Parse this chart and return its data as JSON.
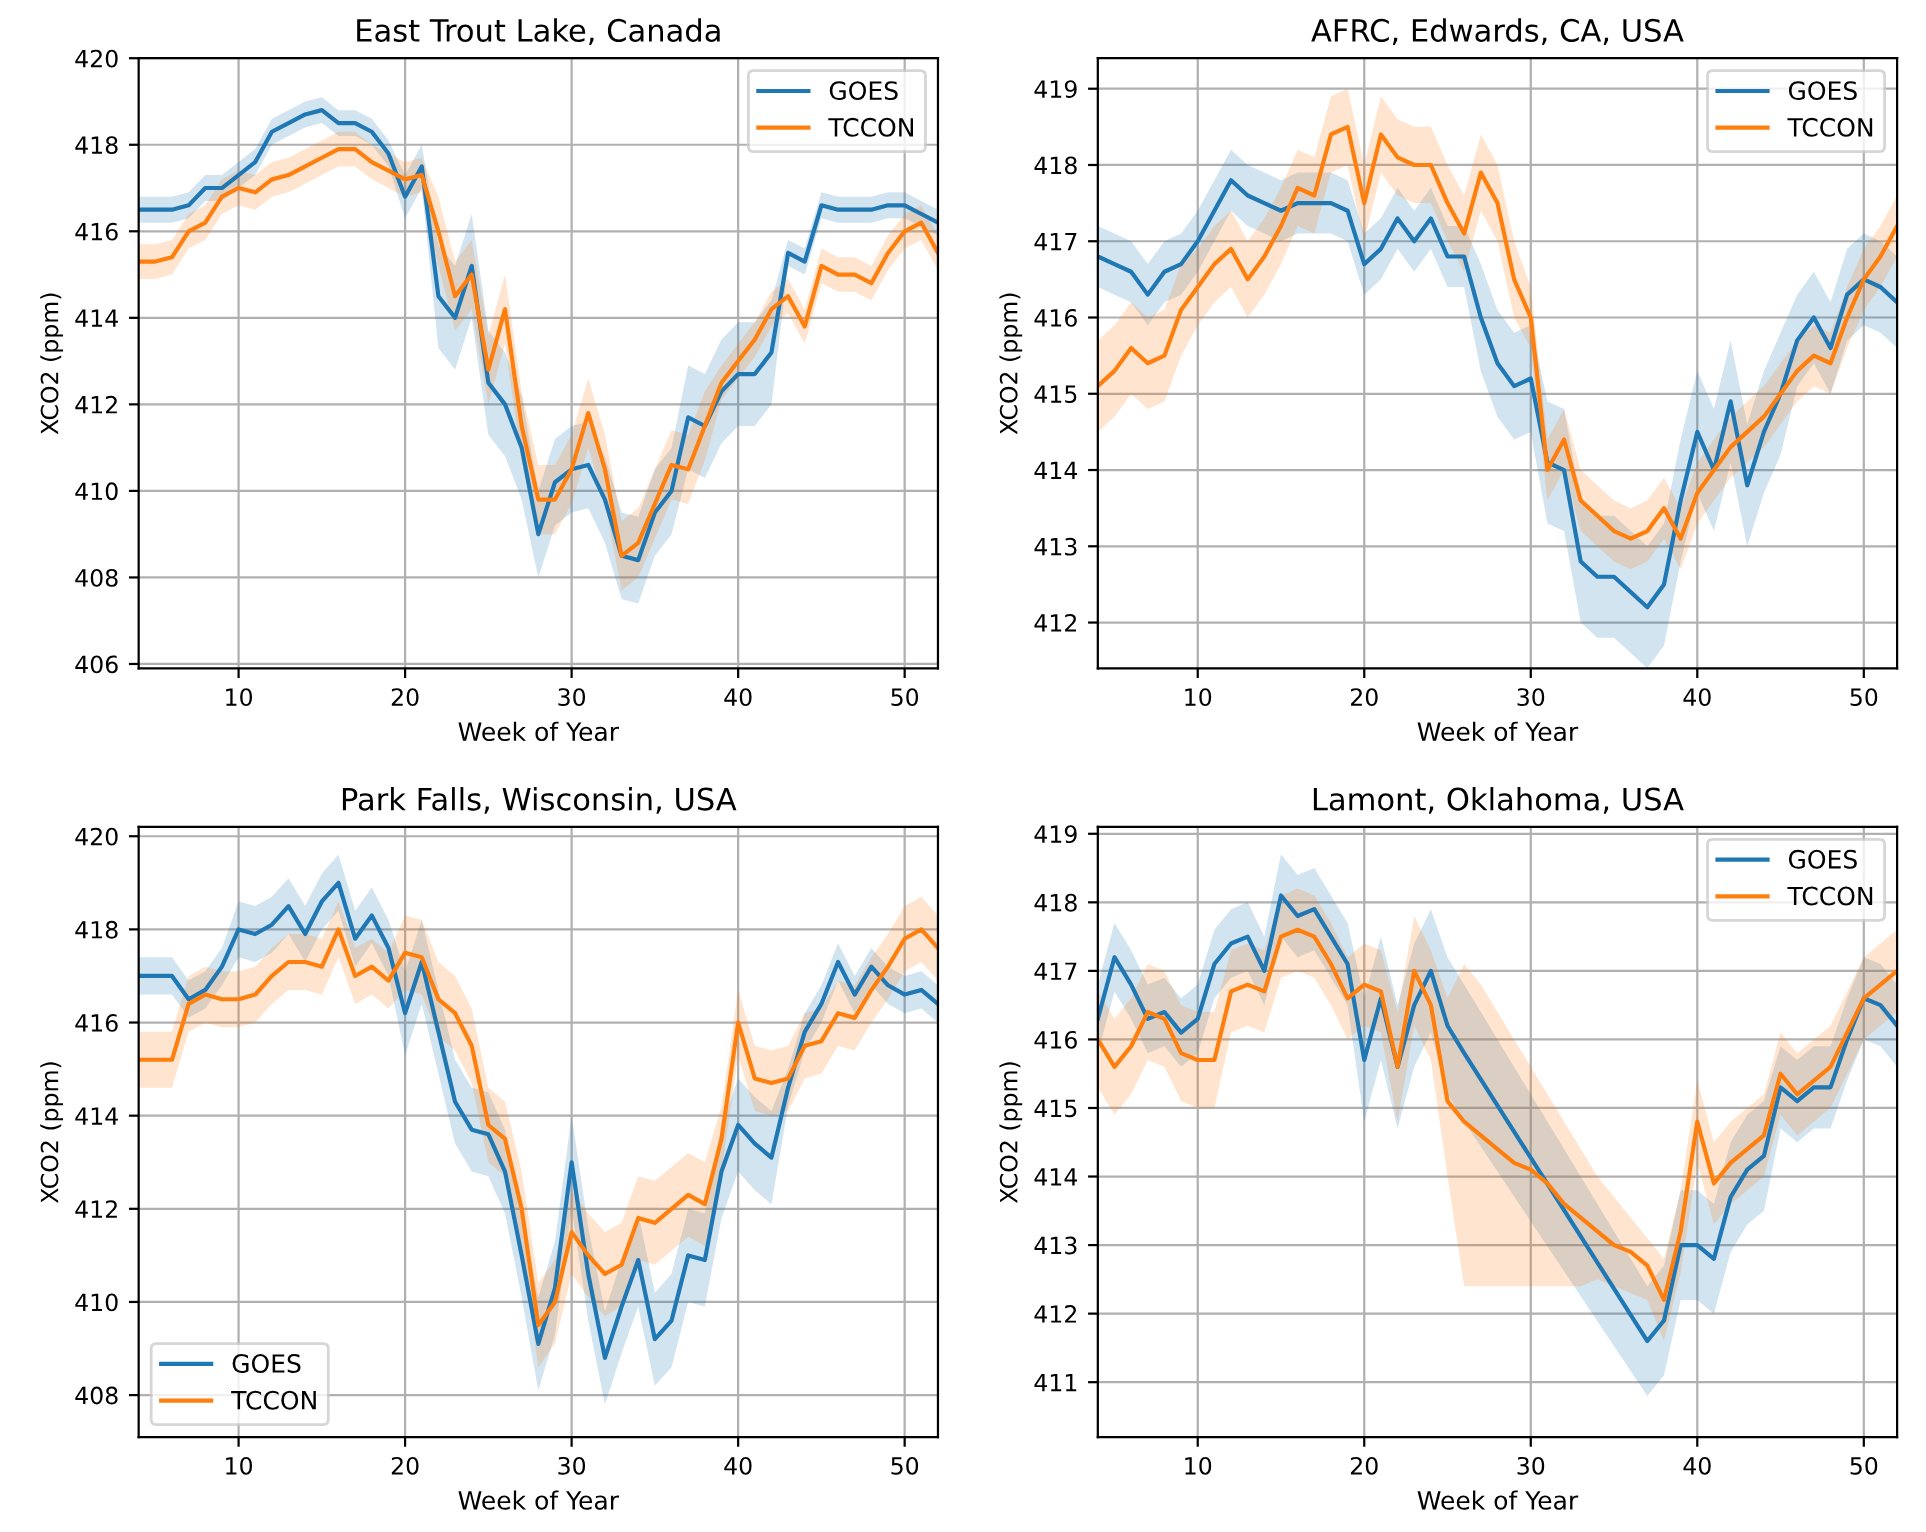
{
  "chart_data": [
    {
      "type": "line",
      "title": "East Trout Lake, Canada",
      "xlabel": "Week of Year",
      "ylabel": "XCO2 (ppm)",
      "xlim": [
        4,
        52
      ],
      "xticks": [
        10,
        20,
        30,
        40,
        50
      ],
      "ylim": [
        405.9,
        420
      ],
      "yticks": [
        406,
        408,
        410,
        412,
        414,
        416,
        418,
        420
      ],
      "grid": true,
      "legend": "top right",
      "line_style": "solid",
      "x": [
        4,
        5,
        6,
        7,
        8,
        9,
        10,
        11,
        12,
        13,
        14,
        15,
        16,
        17,
        18,
        19,
        20,
        21,
        22,
        23,
        24,
        25,
        26,
        27,
        28,
        29,
        30,
        31,
        32,
        33,
        34,
        35,
        36,
        37,
        38,
        39,
        40,
        41,
        42,
        43,
        44,
        45,
        46,
        47,
        48,
        49,
        50,
        51,
        52
      ],
      "series": [
        {
          "name": "GOES",
          "color": "#1f77b4",
          "values": [
            416.5,
            416.5,
            416.5,
            416.6,
            417.0,
            417.0,
            417.3,
            417.6,
            418.3,
            418.5,
            418.7,
            418.8,
            418.5,
            418.5,
            418.3,
            417.8,
            416.8,
            417.5,
            414.5,
            414.0,
            415.2,
            412.5,
            412.0,
            411.0,
            409.0,
            410.2,
            410.5,
            410.6,
            409.8,
            408.5,
            408.4,
            409.5,
            410.0,
            411.7,
            411.5,
            412.3,
            412.7,
            412.7,
            413.2,
            415.5,
            415.3,
            416.6,
            416.5,
            416.5,
            416.5,
            416.6,
            416.6,
            416.4,
            416.2
          ],
          "lower": [
            416.2,
            416.2,
            416.2,
            416.3,
            416.7,
            416.7,
            417.0,
            417.3,
            418.0,
            418.2,
            418.4,
            418.5,
            418.2,
            418.2,
            418.0,
            417.5,
            416.3,
            417.0,
            413.3,
            412.8,
            414.0,
            411.3,
            410.8,
            409.8,
            408.0,
            409.2,
            409.5,
            409.6,
            408.8,
            407.5,
            407.4,
            408.5,
            409.0,
            410.5,
            410.3,
            411.1,
            411.5,
            411.5,
            412.0,
            415.2,
            415.0,
            416.3,
            416.2,
            416.2,
            416.2,
            416.3,
            416.3,
            416.1,
            415.9
          ],
          "upper": [
            416.8,
            416.8,
            416.8,
            416.9,
            417.3,
            417.3,
            417.6,
            417.9,
            418.6,
            418.8,
            419.0,
            419.1,
            418.8,
            418.8,
            418.6,
            418.1,
            417.3,
            418.0,
            415.7,
            415.2,
            416.4,
            413.7,
            413.2,
            412.2,
            410.0,
            411.2,
            411.5,
            411.6,
            410.8,
            409.5,
            409.4,
            410.5,
            411.0,
            412.9,
            412.7,
            413.5,
            413.9,
            413.9,
            414.4,
            415.8,
            415.6,
            416.9,
            416.8,
            416.8,
            416.8,
            416.9,
            416.9,
            416.7,
            416.5
          ]
        },
        {
          "name": "TCCON",
          "color": "#ff7f0e",
          "values": [
            415.3,
            415.3,
            415.4,
            416.0,
            416.2,
            416.8,
            417.0,
            416.9,
            417.2,
            417.3,
            417.5,
            417.7,
            417.9,
            417.9,
            417.6,
            417.4,
            417.2,
            417.3,
            416.0,
            414.5,
            415.0,
            412.8,
            414.2,
            411.5,
            409.8,
            409.8,
            410.5,
            411.8,
            410.5,
            408.5,
            408.8,
            409.7,
            410.6,
            410.5,
            411.5,
            412.5,
            413.0,
            413.5,
            414.2,
            414.5,
            413.8,
            415.2,
            415.0,
            415.0,
            414.8,
            415.5,
            416.0,
            416.2,
            415.5
          ],
          "lower": [
            414.9,
            414.9,
            415.0,
            415.6,
            415.8,
            416.4,
            416.6,
            416.5,
            416.8,
            416.9,
            417.1,
            417.3,
            417.5,
            417.5,
            417.2,
            417.0,
            416.8,
            416.9,
            415.2,
            413.7,
            414.2,
            412.0,
            413.4,
            410.7,
            409.0,
            409.0,
            409.7,
            411.0,
            409.7,
            407.7,
            408.0,
            408.9,
            409.8,
            409.7,
            410.7,
            412.1,
            412.6,
            413.1,
            413.8,
            414.1,
            413.4,
            414.8,
            414.6,
            414.6,
            414.4,
            415.1,
            415.6,
            415.8,
            415.1
          ],
          "upper": [
            415.7,
            415.7,
            415.8,
            416.4,
            416.6,
            417.2,
            417.4,
            417.3,
            417.6,
            417.7,
            417.9,
            418.1,
            418.3,
            418.3,
            418.0,
            417.8,
            417.6,
            417.7,
            416.8,
            415.3,
            415.8,
            413.6,
            415.0,
            412.3,
            410.6,
            410.6,
            411.3,
            412.6,
            411.3,
            409.3,
            409.6,
            410.5,
            411.4,
            411.3,
            412.3,
            412.9,
            413.4,
            413.9,
            414.6,
            414.9,
            414.2,
            415.6,
            415.4,
            415.4,
            415.2,
            415.9,
            416.4,
            416.6,
            415.9
          ]
        }
      ]
    },
    {
      "type": "line",
      "title": "AFRC, Edwards, CA, USA",
      "xlabel": "Week of Year",
      "ylabel": "XCO2 (ppm)",
      "xlim": [
        4,
        52
      ],
      "xticks": [
        10,
        20,
        30,
        40,
        50
      ],
      "ylim": [
        411.4,
        419.4
      ],
      "yticks": [
        412,
        413,
        414,
        415,
        416,
        417,
        418,
        419
      ],
      "grid": true,
      "legend": "top right",
      "line_style": "solid",
      "x": [
        4,
        5,
        6,
        7,
        8,
        9,
        10,
        11,
        12,
        13,
        14,
        15,
        16,
        17,
        18,
        19,
        20,
        21,
        22,
        23,
        24,
        25,
        26,
        27,
        28,
        29,
        30,
        31,
        32,
        33,
        34,
        35,
        36,
        37,
        38,
        39,
        40,
        41,
        42,
        43,
        44,
        45,
        46,
        47,
        48,
        49,
        50,
        51,
        52
      ],
      "series": [
        {
          "name": "GOES",
          "color": "#1f77b4",
          "values": [
            416.8,
            416.7,
            416.6,
            416.3,
            416.6,
            416.7,
            417.0,
            417.4,
            417.8,
            417.6,
            417.5,
            417.4,
            417.5,
            417.5,
            417.5,
            417.4,
            416.7,
            416.9,
            417.3,
            417.0,
            417.3,
            416.8,
            416.8,
            416.0,
            415.4,
            415.1,
            415.2,
            414.1,
            414.0,
            412.8,
            412.6,
            412.6,
            412.4,
            412.2,
            412.5,
            413.6,
            414.5,
            414.0,
            414.9,
            413.8,
            414.5,
            415.0,
            415.7,
            416.0,
            415.6,
            416.3,
            416.5,
            416.4,
            416.2
          ],
          "lower": [
            416.4,
            416.3,
            416.2,
            415.9,
            416.2,
            416.3,
            416.6,
            417.0,
            417.4,
            417.2,
            417.1,
            417.0,
            417.1,
            417.1,
            417.1,
            417.0,
            416.3,
            416.5,
            416.9,
            416.6,
            416.9,
            416.4,
            416.4,
            415.3,
            414.7,
            414.4,
            414.5,
            413.3,
            413.2,
            412.0,
            411.8,
            411.8,
            411.6,
            411.4,
            411.7,
            412.8,
            413.7,
            413.2,
            414.1,
            413.0,
            413.7,
            414.2,
            415.1,
            415.4,
            415.0,
            415.7,
            415.9,
            415.8,
            415.6
          ],
          "upper": [
            417.2,
            417.1,
            417.0,
            416.7,
            417.0,
            417.1,
            417.4,
            417.8,
            418.2,
            418.0,
            417.9,
            417.8,
            417.9,
            417.9,
            417.9,
            417.8,
            417.1,
            417.3,
            417.7,
            417.4,
            417.7,
            417.2,
            417.2,
            416.7,
            416.1,
            415.8,
            415.9,
            414.9,
            414.8,
            413.6,
            413.4,
            413.4,
            413.2,
            413.0,
            413.3,
            414.4,
            415.3,
            414.8,
            415.7,
            414.6,
            415.3,
            415.8,
            416.3,
            416.6,
            416.2,
            416.9,
            417.1,
            417.0,
            416.8
          ]
        },
        {
          "name": "TCCON",
          "color": "#ff7f0e",
          "values": [
            415.1,
            415.3,
            415.6,
            415.4,
            415.5,
            416.1,
            416.4,
            416.7,
            416.9,
            416.5,
            416.8,
            417.2,
            417.7,
            417.6,
            418.4,
            418.5,
            417.5,
            418.4,
            418.1,
            418.0,
            418.0,
            417.5,
            417.1,
            417.9,
            417.5,
            416.5,
            416.0,
            414.0,
            414.4,
            413.6,
            413.4,
            413.2,
            413.1,
            413.2,
            413.5,
            413.1,
            413.7,
            414.0,
            414.3,
            414.5,
            414.7,
            415.0,
            415.3,
            415.5,
            415.4,
            416.0,
            416.5,
            416.8,
            417.2
          ],
          "lower": [
            414.5,
            414.7,
            415.0,
            414.8,
            414.9,
            415.5,
            415.9,
            416.2,
            416.4,
            416.0,
            416.3,
            416.7,
            417.2,
            417.1,
            417.9,
            418.0,
            417.0,
            417.9,
            417.6,
            417.5,
            417.5,
            417.0,
            416.6,
            417.4,
            417.0,
            416.0,
            415.6,
            413.6,
            414.0,
            413.2,
            413.0,
            412.8,
            412.7,
            412.8,
            413.1,
            412.7,
            413.3,
            413.6,
            413.9,
            414.1,
            414.3,
            414.6,
            414.9,
            415.1,
            415.0,
            415.6,
            416.1,
            416.4,
            416.8
          ],
          "upper": [
            415.7,
            415.9,
            416.2,
            416.0,
            416.1,
            416.7,
            416.9,
            417.2,
            417.4,
            417.0,
            417.3,
            417.7,
            418.2,
            418.1,
            418.9,
            419.0,
            418.0,
            418.9,
            418.6,
            418.5,
            418.5,
            418.0,
            417.6,
            418.4,
            418.0,
            417.0,
            416.4,
            414.4,
            414.8,
            414.0,
            413.8,
            413.6,
            413.5,
            413.6,
            413.9,
            413.5,
            414.1,
            414.4,
            414.7,
            414.9,
            415.1,
            415.4,
            415.7,
            415.9,
            415.8,
            416.4,
            416.9,
            417.2,
            417.6
          ]
        }
      ]
    },
    {
      "type": "line",
      "title": "Park Falls, Wisconsin, USA",
      "xlabel": "Week of Year",
      "ylabel": "XCO2 (ppm)",
      "xlim": [
        4,
        52
      ],
      "xticks": [
        10,
        20,
        30,
        40,
        50
      ],
      "ylim": [
        407.1,
        420.2
      ],
      "yticks": [
        408,
        410,
        412,
        414,
        416,
        418,
        420
      ],
      "grid": true,
      "legend": "bottom left",
      "line_style": "solid",
      "x": [
        4,
        5,
        6,
        7,
        8,
        9,
        10,
        11,
        12,
        13,
        14,
        15,
        16,
        17,
        18,
        19,
        20,
        21,
        22,
        23,
        24,
        25,
        26,
        27,
        28,
        29,
        30,
        31,
        32,
        33,
        34,
        35,
        36,
        37,
        38,
        39,
        40,
        41,
        42,
        43,
        44,
        45,
        46,
        47,
        48,
        49,
        50,
        51,
        52
      ],
      "series": [
        {
          "name": "GOES",
          "color": "#1f77b4",
          "values": [
            417.0,
            417.0,
            417.0,
            416.5,
            416.7,
            417.2,
            418.0,
            417.9,
            418.1,
            418.5,
            417.9,
            418.6,
            419.0,
            417.8,
            418.3,
            417.6,
            416.2,
            417.3,
            415.8,
            414.3,
            413.7,
            413.6,
            412.8,
            411.0,
            409.1,
            410.3,
            413.0,
            410.6,
            408.8,
            409.9,
            410.9,
            409.2,
            409.6,
            411.0,
            410.9,
            412.8,
            413.8,
            413.4,
            413.1,
            414.6,
            415.8,
            416.4,
            417.3,
            416.6,
            417.2,
            416.8,
            416.6,
            416.7,
            416.4
          ],
          "lower": [
            416.6,
            416.6,
            416.6,
            416.1,
            416.3,
            416.8,
            417.4,
            417.3,
            417.5,
            417.9,
            417.3,
            418.0,
            418.4,
            417.2,
            417.7,
            417.0,
            415.3,
            416.4,
            414.9,
            413.4,
            412.8,
            412.7,
            411.9,
            410.1,
            408.1,
            409.3,
            412.0,
            409.6,
            407.8,
            408.9,
            409.9,
            408.2,
            408.6,
            410.0,
            409.9,
            411.8,
            412.8,
            412.4,
            412.1,
            414.2,
            415.4,
            416.0,
            416.9,
            416.2,
            416.8,
            416.4,
            416.2,
            416.3,
            416.0
          ],
          "upper": [
            417.4,
            417.4,
            417.4,
            416.9,
            417.1,
            417.6,
            418.6,
            418.5,
            418.7,
            419.1,
            418.5,
            419.2,
            419.6,
            418.4,
            418.9,
            418.2,
            417.1,
            418.2,
            416.7,
            415.2,
            414.6,
            414.5,
            413.7,
            411.9,
            410.1,
            411.3,
            414.0,
            411.6,
            409.8,
            410.9,
            411.9,
            410.2,
            410.6,
            412.0,
            411.9,
            413.8,
            414.8,
            414.4,
            414.1,
            415.0,
            416.2,
            416.8,
            417.7,
            417.0,
            417.6,
            417.2,
            417.0,
            417.1,
            416.8
          ]
        },
        {
          "name": "TCCON",
          "color": "#ff7f0e",
          "values": [
            415.2,
            415.2,
            415.2,
            416.4,
            416.6,
            416.5,
            416.5,
            416.6,
            417.0,
            417.3,
            417.3,
            417.2,
            418.0,
            417.0,
            417.2,
            416.9,
            417.5,
            417.4,
            416.5,
            416.2,
            415.5,
            413.8,
            413.5,
            412.0,
            409.5,
            410.0,
            411.5,
            411.0,
            410.6,
            410.8,
            411.8,
            411.7,
            412.0,
            412.3,
            412.1,
            413.5,
            416.0,
            414.8,
            414.7,
            414.8,
            415.5,
            415.6,
            416.2,
            416.1,
            416.7,
            417.2,
            417.8,
            418.0,
            417.6
          ],
          "lower": [
            414.6,
            414.6,
            414.6,
            415.8,
            416.0,
            415.9,
            415.9,
            416.0,
            416.4,
            416.7,
            416.7,
            416.6,
            417.4,
            416.4,
            416.6,
            416.3,
            416.7,
            416.6,
            415.7,
            415.4,
            414.7,
            413.0,
            412.7,
            411.2,
            408.6,
            409.1,
            410.6,
            410.1,
            409.7,
            409.9,
            410.9,
            410.8,
            411.1,
            411.4,
            411.2,
            412.8,
            415.3,
            414.1,
            414.0,
            414.1,
            414.8,
            414.9,
            415.5,
            415.4,
            416.0,
            416.5,
            417.1,
            417.3,
            416.9
          ],
          "upper": [
            415.8,
            415.8,
            415.8,
            417.0,
            417.2,
            417.1,
            417.1,
            417.2,
            417.6,
            417.9,
            417.9,
            417.8,
            418.6,
            417.6,
            417.8,
            417.5,
            418.3,
            418.2,
            417.3,
            417.0,
            416.3,
            414.6,
            414.3,
            412.8,
            410.4,
            410.9,
            412.4,
            411.9,
            411.5,
            411.7,
            412.7,
            412.6,
            412.9,
            413.2,
            413.0,
            414.2,
            416.7,
            415.5,
            415.4,
            415.5,
            416.2,
            416.3,
            416.9,
            416.8,
            417.4,
            417.9,
            418.5,
            418.7,
            418.3
          ]
        }
      ]
    },
    {
      "type": "line",
      "title": "Lamont, Oklahoma, USA",
      "xlabel": "Week of Year",
      "ylabel": "XCO2 (ppm)",
      "xlim": [
        4,
        52
      ],
      "xticks": [
        10,
        20,
        30,
        40,
        50
      ],
      "ylim": [
        410.2,
        419.1
      ],
      "yticks": [
        411,
        412,
        413,
        414,
        415,
        416,
        417,
        418,
        419
      ],
      "grid": true,
      "legend": "top right",
      "line_style": "solid",
      "x": [
        4,
        5,
        6,
        7,
        8,
        9,
        10,
        11,
        12,
        13,
        14,
        15,
        16,
        17,
        18,
        19,
        20,
        21,
        22,
        23,
        24,
        25,
        26,
        27,
        28,
        29,
        30,
        31,
        32,
        33,
        34,
        35,
        36,
        37,
        38,
        39,
        40,
        41,
        42,
        43,
        44,
        45,
        46,
        47,
        48,
        49,
        50,
        51,
        52
      ],
      "series": [
        {
          "name": "GOES",
          "color": "#1f77b4",
          "x": [
            4,
            5,
            6,
            7,
            8,
            9,
            10,
            11,
            12,
            13,
            14,
            15,
            16,
            17,
            18,
            19,
            20,
            21,
            22,
            23,
            24,
            25,
            26,
            37,
            38,
            39,
            40,
            41,
            42,
            43,
            44,
            45,
            46,
            47,
            48,
            49,
            50,
            51,
            52
          ],
          "values": [
            416.3,
            417.2,
            416.8,
            416.3,
            416.4,
            416.1,
            416.3,
            417.1,
            417.4,
            417.5,
            417.0,
            418.1,
            417.8,
            417.9,
            417.5,
            417.1,
            415.7,
            416.6,
            415.6,
            416.5,
            417.0,
            416.2,
            415.8,
            411.6,
            411.9,
            413.0,
            413.0,
            412.8,
            413.7,
            414.1,
            414.3,
            415.3,
            415.1,
            415.3,
            415.3,
            416.0,
            416.6,
            416.5,
            416.2
          ],
          "lower": [
            415.8,
            416.7,
            416.3,
            415.8,
            415.9,
            415.6,
            415.8,
            416.6,
            416.9,
            417.0,
            416.5,
            417.5,
            417.2,
            417.3,
            416.9,
            416.5,
            414.8,
            415.7,
            414.7,
            415.6,
            416.1,
            415.2,
            414.8,
            410.8,
            411.1,
            412.2,
            412.2,
            412.0,
            412.9,
            413.3,
            413.5,
            414.7,
            414.5,
            414.7,
            414.7,
            415.4,
            416.0,
            415.9,
            415.6
          ],
          "upper": [
            416.8,
            417.7,
            417.3,
            416.8,
            416.9,
            416.6,
            416.8,
            417.6,
            417.9,
            418.0,
            417.5,
            418.7,
            418.4,
            418.5,
            418.1,
            417.7,
            416.6,
            417.5,
            416.5,
            417.4,
            417.9,
            417.2,
            416.8,
            412.4,
            412.7,
            413.8,
            413.8,
            413.6,
            414.5,
            414.9,
            415.1,
            415.9,
            415.7,
            415.9,
            415.9,
            416.6,
            417.2,
            417.1,
            416.8
          ]
        },
        {
          "name": "TCCON",
          "color": "#ff7f0e",
          "values": [
            416.0,
            415.6,
            415.9,
            416.4,
            416.3,
            415.8,
            415.7,
            415.7,
            416.7,
            416.8,
            416.7,
            417.5,
            417.6,
            417.5,
            417.1,
            416.6,
            416.8,
            416.7,
            415.6,
            417.0,
            416.5,
            415.1,
            414.8,
            414.6,
            414.4,
            414.2,
            414.1,
            413.9,
            413.6,
            413.4,
            413.2,
            413.0,
            412.9,
            412.7,
            412.2,
            413.2,
            414.8,
            413.9,
            414.2,
            414.4,
            414.6,
            415.5,
            415.2,
            415.4,
            415.6,
            416.1,
            416.6,
            416.8,
            417.0
          ],
          "lower": [
            415.3,
            414.9,
            415.2,
            415.7,
            415.6,
            415.1,
            415.0,
            415.0,
            416.1,
            416.2,
            416.1,
            416.9,
            417.0,
            416.9,
            416.5,
            416.0,
            416.2,
            416.1,
            414.8,
            416.2,
            415.7,
            414.0,
            412.4,
            412.4,
            412.4,
            412.4,
            412.4,
            412.4,
            412.4,
            412.4,
            412.5,
            412.4,
            412.3,
            412.2,
            411.6,
            412.6,
            414.2,
            413.3,
            413.6,
            413.8,
            414.0,
            414.9,
            414.6,
            414.8,
            415.0,
            415.5,
            416.0,
            416.2,
            416.4
          ],
          "upper": [
            416.7,
            416.3,
            416.6,
            417.1,
            417.0,
            416.5,
            416.4,
            416.4,
            417.3,
            417.4,
            417.3,
            418.1,
            418.2,
            418.1,
            417.7,
            417.2,
            417.4,
            417.3,
            416.4,
            417.8,
            417.3,
            416.6,
            417.1,
            416.8,
            416.4,
            416.0,
            415.6,
            415.2,
            414.8,
            414.4,
            414.0,
            413.7,
            413.4,
            413.1,
            412.8,
            413.8,
            415.4,
            414.5,
            414.8,
            415.0,
            415.2,
            416.1,
            415.8,
            416.0,
            416.2,
            416.7,
            417.2,
            417.4,
            417.6
          ]
        }
      ]
    }
  ]
}
